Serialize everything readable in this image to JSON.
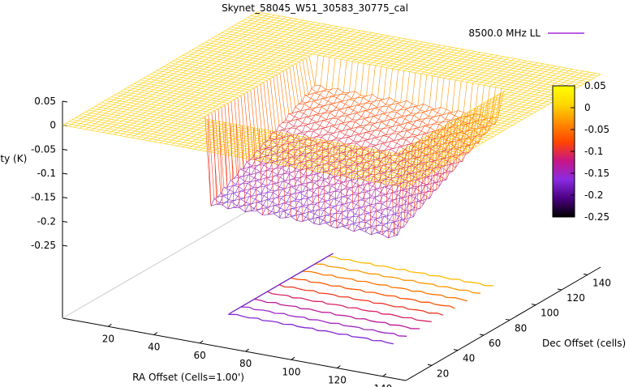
{
  "chart_data": {
    "type": "surface3d",
    "title": "Skynet_58045_W51_30583_30775_cal",
    "xlabel": "RA Offset (Cells=1.00')",
    "ylabel": "Dec Offset (cells)",
    "zlabel": "Intensity (K)",
    "legend": {
      "label": "8500.0 MHz LL",
      "color": "#9400d3",
      "position": "top-right"
    },
    "xticks": [
      "20",
      "40",
      "60",
      "80",
      "100",
      "120",
      "140"
    ],
    "yticks": [
      "20",
      "40",
      "60",
      "80",
      "100",
      "120",
      "140"
    ],
    "zticks": [
      "0.05",
      "0",
      "-0.05",
      "-0.1",
      "-0.15",
      "-0.2",
      "-0.25"
    ],
    "xlim": [
      0,
      150
    ],
    "ylim": [
      0,
      150
    ],
    "zlim": [
      -0.25,
      0.05
    ],
    "colorbox": {
      "ticks": [
        "0.05",
        "0",
        "-0.05",
        "-0.1",
        "-0.15",
        "-0.2",
        "-0.25"
      ],
      "range": [
        -0.25,
        0.05
      ],
      "palette": [
        "#000000",
        "#4b0082",
        "#8a2be2",
        "#c71585",
        "#ff4500",
        "#ff8c00",
        "#ffd700",
        "#ffff00"
      ]
    },
    "surface": {
      "baseline_value": 0,
      "depression_value": -0.18,
      "depression_x_range": [
        45,
        125
      ],
      "depression_y_range": [
        35,
        115
      ]
    },
    "contours": {
      "levels": [
        -0.17,
        -0.15,
        -0.13,
        -0.11,
        -0.09,
        -0.07,
        -0.05,
        -0.03,
        -0.01
      ]
    }
  }
}
